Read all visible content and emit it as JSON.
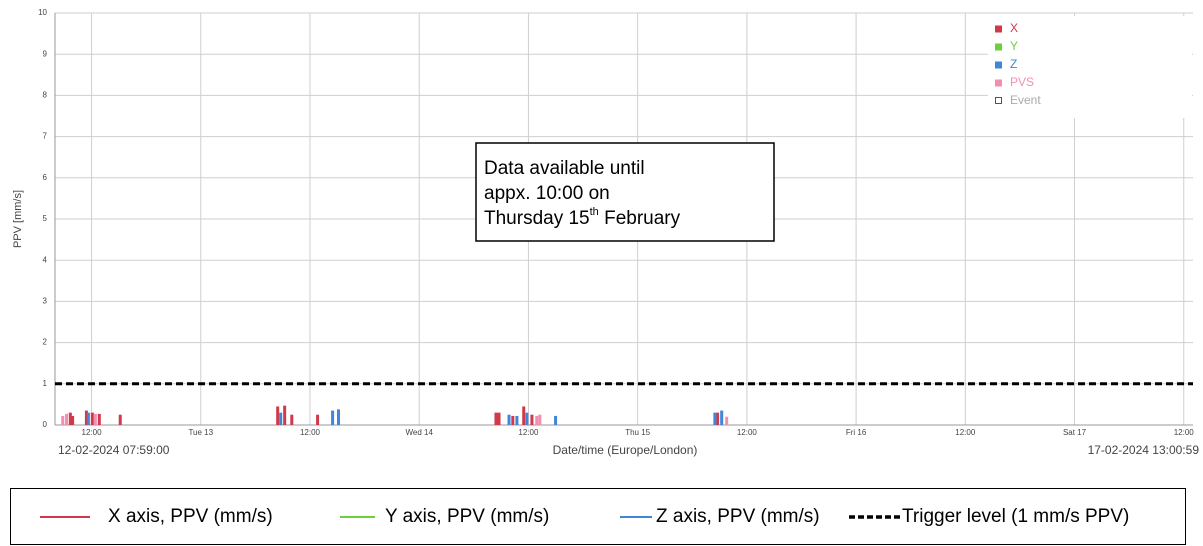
{
  "chart_data": {
    "type": "bar",
    "y_label": "PPV [mm/s]",
    "x_label": "Date/time (Europe/London)",
    "ylim": [
      0,
      10
    ],
    "yticks": [
      0,
      1,
      2,
      3,
      4,
      5,
      6,
      7,
      8,
      9,
      10
    ],
    "xlim": [
      {
        "value": "2024-02-12T07:59:00",
        "label": "12-02-2024 07:59:00"
      },
      {
        "value": "2024-02-17T13:00:59",
        "label": "17-02-2024 13:00:59"
      }
    ],
    "xticks": [
      {
        "value": "2024-02-12T12:00",
        "label": "12:00"
      },
      {
        "value": "2024-02-13T00:00",
        "label": "Tue 13"
      },
      {
        "value": "2024-02-13T12:00",
        "label": "12:00"
      },
      {
        "value": "2024-02-14T00:00",
        "label": "Wed 14"
      },
      {
        "value": "2024-02-14T12:00",
        "label": "12:00"
      },
      {
        "value": "2024-02-15T00:00",
        "label": "Thu 15"
      },
      {
        "value": "2024-02-15T12:00",
        "label": "12:00"
      },
      {
        "value": "2024-02-16T00:00",
        "label": "Fri 16"
      },
      {
        "value": "2024-02-16T12:00",
        "label": "12:00"
      },
      {
        "value": "2024-02-17T00:00",
        "label": "Sat 17"
      },
      {
        "value": "2024-02-17T12:00",
        "label": "12:00"
      }
    ],
    "grid": true,
    "series": [
      {
        "name": "X",
        "legend_label": "X axis, PPV (mm/s)",
        "color": "#d0394b",
        "x": [
          "2024-02-12T09:40",
          "2024-02-12T09:55",
          "2024-02-12T11:26",
          "2024-02-12T12:05",
          "2024-02-12T12:51",
          "2024-02-12T15:09",
          "2024-02-13T08:27",
          "2024-02-13T09:13",
          "2024-02-13T10:00",
          "2024-02-13T12:50",
          "2024-02-14T08:26",
          "2024-02-14T08:46",
          "2024-02-14T10:17",
          "2024-02-14T11:29",
          "2024-02-14T12:23",
          "2024-02-15T08:47"
        ],
        "values": [
          0.3,
          0.22,
          0.35,
          0.3,
          0.27,
          0.25,
          0.45,
          0.47,
          0.25,
          0.25,
          0.3,
          0.3,
          0.22,
          0.45,
          0.25,
          0.3
        ]
      },
      {
        "name": "Y",
        "legend_label": "Y axis, PPV (mm/s)",
        "color": "#6fcf3a",
        "x": [],
        "values": []
      },
      {
        "name": "Z",
        "legend_label": "Z axis, PPV (mm/s)",
        "color": "#3f86d8",
        "x": [
          "2024-02-12T11:39",
          "2024-02-13T08:47",
          "2024-02-13T14:29",
          "2024-02-13T15:08",
          "2024-02-14T09:52",
          "2024-02-14T10:44",
          "2024-02-14T11:50",
          "2024-02-14T14:59",
          "2024-02-15T08:29",
          "2024-02-15T09:14"
        ],
        "values": [
          0.3,
          0.3,
          0.35,
          0.38,
          0.25,
          0.22,
          0.3,
          0.22,
          0.3,
          0.35
        ]
      },
      {
        "name": "PVS",
        "color": "#f28fb0",
        "x": [
          "2024-02-12T08:50",
          "2024-02-12T09:15",
          "2024-02-12T12:25",
          "2024-02-14T12:55",
          "2024-02-14T13:15",
          "2024-02-15T09:47"
        ],
        "values": [
          0.22,
          0.27,
          0.27,
          0.22,
          0.25,
          0.2
        ]
      }
    ],
    "event_legend": "Event",
    "trigger": {
      "name": "Trigger level (1 mm/s PPV)",
      "value": 1,
      "color": "#000000"
    },
    "annotation": {
      "lines": [
        "Data available until",
        "appx. 10:00 on"
      ],
      "last_a": "Thursday 15",
      "last_sup": "th",
      "last_b": " February"
    }
  }
}
